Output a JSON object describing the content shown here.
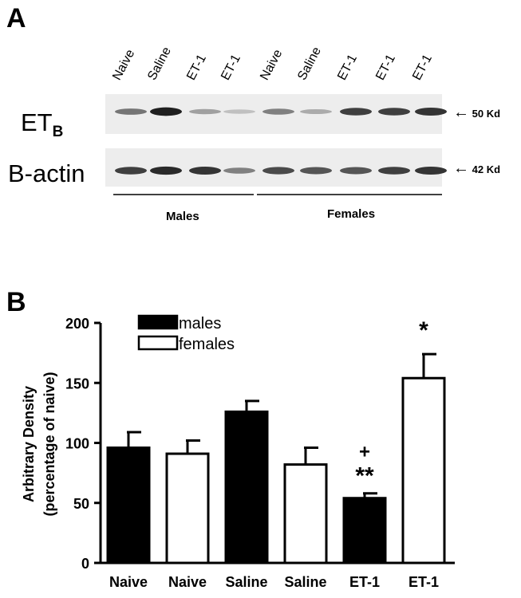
{
  "panel_a": {
    "letter": "A",
    "lanes": [
      "Naive",
      "Saline",
      "ET-1",
      "ET-1",
      "Naive",
      "Saline",
      "ET-1",
      "ET-1",
      "ET-1"
    ],
    "rows": [
      {
        "label_main": "ET",
        "label_sub": "B",
        "marker_arrow": "←",
        "marker": "50 Kd",
        "band_intensity": [
          0.55,
          0.95,
          0.35,
          0.2,
          0.5,
          0.3,
          0.8,
          0.8,
          0.85
        ]
      },
      {
        "label_main": "B-actin",
        "label_sub": "",
        "marker_arrow": "←",
        "marker": "42 Kd",
        "band_intensity": [
          0.8,
          0.9,
          0.85,
          0.5,
          0.75,
          0.7,
          0.7,
          0.8,
          0.85
        ]
      }
    ],
    "groups": [
      {
        "label": "Males"
      },
      {
        "label": "Females"
      }
    ]
  },
  "panel_b": {
    "letter": "B"
  },
  "chart_data": {
    "type": "bar",
    "ylabel": "Arbitrary Density\n(percentage of naive)",
    "ylabel_line1": "Arbitrary Density",
    "ylabel_line2": "(percentage of naive)",
    "xlabel": "",
    "ylim": [
      0,
      200
    ],
    "yticks": [
      "0",
      "50",
      "100",
      "150",
      "200"
    ],
    "categories": [
      "Naive",
      "Naive",
      "Saline",
      "Saline",
      "ET-1",
      "ET-1"
    ],
    "values": [
      96,
      91,
      126,
      82,
      54,
      154
    ],
    "errors": [
      13,
      11,
      9,
      14,
      4,
      20
    ],
    "fills": [
      "male",
      "female",
      "male",
      "female",
      "male",
      "female"
    ],
    "series": [
      {
        "name": "males",
        "color": "#000000"
      },
      {
        "name": "females",
        "color": "#ffffff"
      }
    ],
    "annotations": [
      {
        "bar": 4,
        "text": "**"
      },
      {
        "bar": 4,
        "text": "+"
      },
      {
        "bar": 5,
        "text": "*"
      }
    ],
    "legend_position": "top-left"
  }
}
